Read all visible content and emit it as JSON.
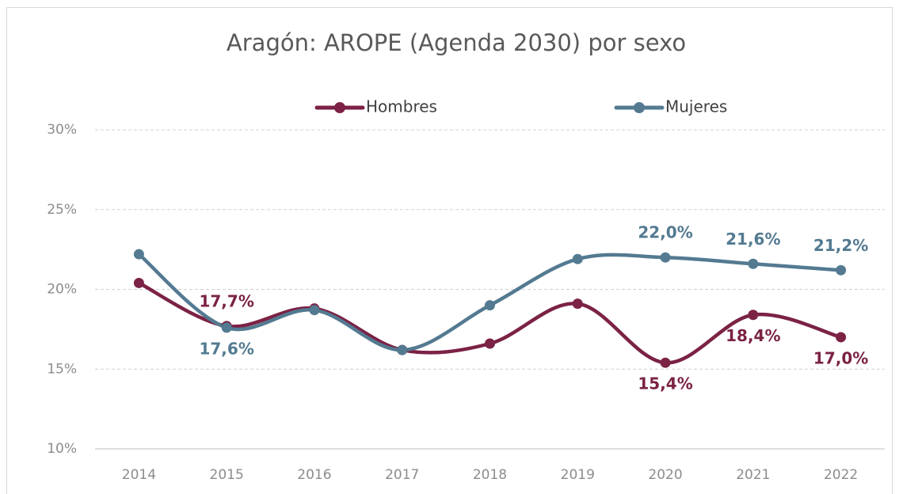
{
  "chart_data": {
    "type": "line",
    "title": "Aragón: AROPE (Agenda 2030) por sexo",
    "categories": [
      "2014",
      "2015",
      "2016",
      "2017",
      "2018",
      "2019",
      "2020",
      "2021",
      "2022"
    ],
    "series": [
      {
        "name": "Hombres",
        "color": "#7b2245",
        "values": [
          20.4,
          17.7,
          18.8,
          16.2,
          16.6,
          19.1,
          15.4,
          18.4,
          17.0
        ],
        "value_labels": [
          null,
          "17,7%",
          null,
          null,
          null,
          null,
          "15,4%",
          "18,4%",
          "17,0%"
        ]
      },
      {
        "name": "Mujeres",
        "color": "#537a91",
        "values": [
          22.2,
          17.6,
          18.7,
          16.2,
          19.0,
          21.9,
          22.0,
          21.6,
          21.2
        ],
        "value_labels": [
          null,
          "17,6%",
          null,
          null,
          null,
          null,
          "22,0%",
          "21,6%",
          "21,2%"
        ]
      }
    ],
    "ylim": [
      10,
      30
    ],
    "yticks": [
      {
        "value": 10,
        "label": "10%"
      },
      {
        "value": 15,
        "label": "15%"
      },
      {
        "value": 20,
        "label": "20%"
      },
      {
        "value": 25,
        "label": "25%"
      },
      {
        "value": 30,
        "label": "30%"
      }
    ],
    "grid": true,
    "legend": "top",
    "smooth": true
  }
}
